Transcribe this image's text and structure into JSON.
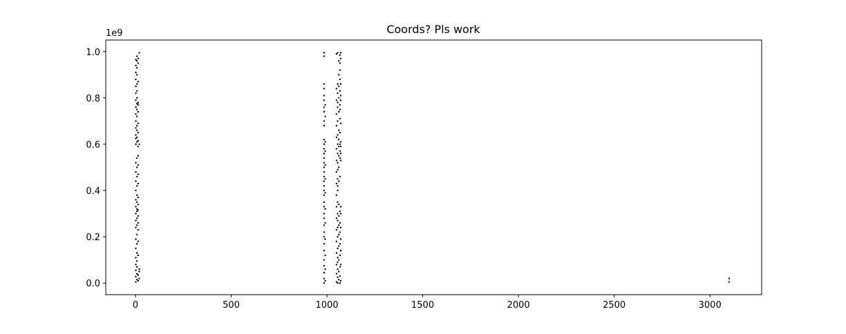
{
  "chart_data": {
    "type": "scatter",
    "title": "Coords? Pls work",
    "xlabel": "",
    "ylabel": "",
    "xlim": [
      -155,
      3270
    ],
    "ylim": [
      -50000000,
      1050000000
    ],
    "xticks": [
      0,
      500,
      1000,
      1500,
      2000,
      2500,
      3000
    ],
    "xtick_labels": [
      "0",
      "500",
      "1000",
      "1500",
      "2000",
      "2500",
      "3000"
    ],
    "yticks": [
      0,
      200000000,
      400000000,
      600000000,
      800000000,
      1000000000
    ],
    "ytick_labels": [
      "0.0",
      "0.2",
      "0.4",
      "0.6",
      "0.8",
      "1.0"
    ],
    "y_offset_label": "1e9",
    "grid": false,
    "legend": "none",
    "marker_color": "#000000",
    "series": [
      {
        "name": "",
        "points": [
          [
            2,
            5000000
          ],
          [
            2,
            28000000
          ],
          [
            2,
            55000000
          ],
          [
            2,
            80000000
          ],
          [
            2,
            110000000
          ],
          [
            2,
            150000000
          ],
          [
            2,
            190000000
          ],
          [
            2,
            240000000
          ],
          [
            2,
            270000000
          ],
          [
            2,
            300000000
          ],
          [
            2,
            330000000
          ],
          [
            2,
            360000000
          ],
          [
            2,
            400000000
          ],
          [
            2,
            440000000
          ],
          [
            2,
            480000000
          ],
          [
            2,
            520000000
          ],
          [
            2,
            600000000
          ],
          [
            2,
            625000000
          ],
          [
            2,
            640000000
          ],
          [
            2,
            670000000
          ],
          [
            2,
            700000000
          ],
          [
            2,
            730000000
          ],
          [
            2,
            760000000
          ],
          [
            2,
            790000000
          ],
          [
            2,
            820000000
          ],
          [
            2,
            850000000
          ],
          [
            2,
            880000000
          ],
          [
            2,
            910000000
          ],
          [
            2,
            940000000
          ],
          [
            2,
            965000000
          ],
          [
            8,
            15000000
          ],
          [
            8,
            40000000
          ],
          [
            8,
            70000000
          ],
          [
            8,
            95000000
          ],
          [
            8,
            130000000
          ],
          [
            8,
            170000000
          ],
          [
            8,
            210000000
          ],
          [
            8,
            250000000
          ],
          [
            8,
            280000000
          ],
          [
            8,
            310000000
          ],
          [
            8,
            320000000
          ],
          [
            8,
            350000000
          ],
          [
            8,
            380000000
          ],
          [
            8,
            420000000
          ],
          [
            8,
            460000000
          ],
          [
            8,
            500000000
          ],
          [
            8,
            540000000
          ],
          [
            8,
            610000000
          ],
          [
            8,
            630000000
          ],
          [
            8,
            660000000
          ],
          [
            8,
            680000000
          ],
          [
            8,
            720000000
          ],
          [
            8,
            750000000
          ],
          [
            8,
            775000000
          ],
          [
            8,
            800000000
          ],
          [
            8,
            830000000
          ],
          [
            8,
            860000000
          ],
          [
            8,
            900000000
          ],
          [
            8,
            930000000
          ],
          [
            8,
            960000000
          ],
          [
            8,
            980000000
          ],
          [
            14,
            10000000
          ],
          [
            14,
            35000000
          ],
          [
            14,
            120000000
          ],
          [
            14,
            180000000
          ],
          [
            14,
            230000000
          ],
          [
            14,
            260000000
          ],
          [
            14,
            290000000
          ],
          [
            14,
            315000000
          ],
          [
            14,
            340000000
          ],
          [
            14,
            370000000
          ],
          [
            14,
            430000000
          ],
          [
            14,
            470000000
          ],
          [
            14,
            510000000
          ],
          [
            14,
            550000000
          ],
          [
            14,
            590000000
          ],
          [
            14,
            615000000
          ],
          [
            14,
            650000000
          ],
          [
            14,
            690000000
          ],
          [
            14,
            740000000
          ],
          [
            14,
            770000000
          ],
          [
            14,
            780000000
          ],
          [
            14,
            870000000
          ],
          [
            14,
            950000000
          ],
          [
            14,
            970000000
          ],
          [
            20,
            20000000
          ],
          [
            20,
            50000000
          ],
          [
            20,
            60000000
          ],
          [
            20,
            600000000
          ],
          [
            20,
            995000000
          ],
          [
            985,
            0
          ],
          [
            985,
            20000000
          ],
          [
            985,
            45000000
          ],
          [
            985,
            75000000
          ],
          [
            985,
            100000000
          ],
          [
            985,
            140000000
          ],
          [
            985,
            170000000
          ],
          [
            985,
            200000000
          ],
          [
            985,
            220000000
          ],
          [
            985,
            250000000
          ],
          [
            985,
            280000000
          ],
          [
            985,
            300000000
          ],
          [
            985,
            330000000
          ],
          [
            985,
            350000000
          ],
          [
            985,
            380000000
          ],
          [
            985,
            400000000
          ],
          [
            985,
            420000000
          ],
          [
            985,
            440000000
          ],
          [
            985,
            460000000
          ],
          [
            985,
            480000000
          ],
          [
            985,
            500000000
          ],
          [
            985,
            520000000
          ],
          [
            985,
            540000000
          ],
          [
            985,
            560000000
          ],
          [
            985,
            580000000
          ],
          [
            985,
            600000000
          ],
          [
            985,
            620000000
          ],
          [
            985,
            680000000
          ],
          [
            985,
            700000000
          ],
          [
            985,
            740000000
          ],
          [
            985,
            760000000
          ],
          [
            985,
            790000000
          ],
          [
            985,
            810000000
          ],
          [
            985,
            840000000
          ],
          [
            985,
            860000000
          ],
          [
            985,
            980000000
          ],
          [
            985,
            995000000
          ],
          [
            991,
            10000000
          ],
          [
            991,
            60000000
          ],
          [
            991,
            120000000
          ],
          [
            991,
            190000000
          ],
          [
            991,
            260000000
          ],
          [
            991,
            320000000
          ],
          [
            991,
            390000000
          ],
          [
            991,
            450000000
          ],
          [
            991,
            510000000
          ],
          [
            991,
            570000000
          ],
          [
            991,
            610000000
          ],
          [
            991,
            720000000
          ],
          [
            991,
            770000000
          ],
          [
            1050,
            5000000
          ],
          [
            1050,
            40000000
          ],
          [
            1050,
            80000000
          ],
          [
            1050,
            130000000
          ],
          [
            1050,
            180000000
          ],
          [
            1050,
            230000000
          ],
          [
            1050,
            280000000
          ],
          [
            1050,
            330000000
          ],
          [
            1050,
            380000000
          ],
          [
            1050,
            430000000
          ],
          [
            1050,
            480000000
          ],
          [
            1050,
            530000000
          ],
          [
            1050,
            580000000
          ],
          [
            1050,
            630000000
          ],
          [
            1050,
            680000000
          ],
          [
            1050,
            730000000
          ],
          [
            1050,
            790000000
          ],
          [
            1050,
            840000000
          ],
          [
            1050,
            990000000
          ],
          [
            1056,
            0
          ],
          [
            1056,
            25000000
          ],
          [
            1056,
            60000000
          ],
          [
            1056,
            90000000
          ],
          [
            1056,
            110000000
          ],
          [
            1056,
            150000000
          ],
          [
            1056,
            200000000
          ],
          [
            1056,
            240000000
          ],
          [
            1056,
            270000000
          ],
          [
            1056,
            300000000
          ],
          [
            1056,
            350000000
          ],
          [
            1056,
            400000000
          ],
          [
            1056,
            420000000
          ],
          [
            1056,
            450000000
          ],
          [
            1056,
            490000000
          ],
          [
            1056,
            520000000
          ],
          [
            1056,
            560000000
          ],
          [
            1056,
            600000000
          ],
          [
            1056,
            640000000
          ],
          [
            1056,
            700000000
          ],
          [
            1056,
            760000000
          ],
          [
            1056,
            780000000
          ],
          [
            1056,
            820000000
          ],
          [
            1056,
            860000000
          ],
          [
            1056,
            995000000
          ],
          [
            1062,
            15000000
          ],
          [
            1062,
            50000000
          ],
          [
            1062,
            100000000
          ],
          [
            1062,
            160000000
          ],
          [
            1062,
            210000000
          ],
          [
            1062,
            250000000
          ],
          [
            1062,
            290000000
          ],
          [
            1062,
            340000000
          ],
          [
            1062,
            440000000
          ],
          [
            1062,
            500000000
          ],
          [
            1062,
            550000000
          ],
          [
            1062,
            590000000
          ],
          [
            1062,
            620000000
          ],
          [
            1062,
            660000000
          ],
          [
            1062,
            740000000
          ],
          [
            1062,
            800000000
          ],
          [
            1062,
            850000000
          ],
          [
            1062,
            900000000
          ],
          [
            1062,
            960000000
          ],
          [
            1068,
            0
          ],
          [
            1068,
            30000000
          ],
          [
            1068,
            70000000
          ],
          [
            1068,
            120000000
          ],
          [
            1068,
            170000000
          ],
          [
            1068,
            220000000
          ],
          [
            1068,
            260000000
          ],
          [
            1068,
            310000000
          ],
          [
            1068,
            460000000
          ],
          [
            1068,
            540000000
          ],
          [
            1068,
            570000000
          ],
          [
            1068,
            600000000
          ],
          [
            1068,
            650000000
          ],
          [
            1068,
            710000000
          ],
          [
            1068,
            750000000
          ],
          [
            1068,
            770000000
          ],
          [
            1068,
            830000000
          ],
          [
            1068,
            880000000
          ],
          [
            1068,
            920000000
          ],
          [
            1068,
            950000000
          ],
          [
            1068,
            985000000
          ],
          [
            1072,
            10000000
          ],
          [
            1072,
            80000000
          ],
          [
            1072,
            140000000
          ],
          [
            1072,
            190000000
          ],
          [
            1072,
            240000000
          ],
          [
            1072,
            300000000
          ],
          [
            1072,
            330000000
          ],
          [
            1072,
            530000000
          ],
          [
            1072,
            560000000
          ],
          [
            1072,
            590000000
          ],
          [
            1072,
            610000000
          ],
          [
            1072,
            690000000
          ],
          [
            1072,
            790000000
          ],
          [
            1072,
            810000000
          ],
          [
            1072,
            860000000
          ],
          [
            1072,
            970000000
          ],
          [
            1072,
            995000000
          ],
          [
            3100,
            5000000
          ],
          [
            3100,
            20000000
          ]
        ]
      }
    ]
  }
}
